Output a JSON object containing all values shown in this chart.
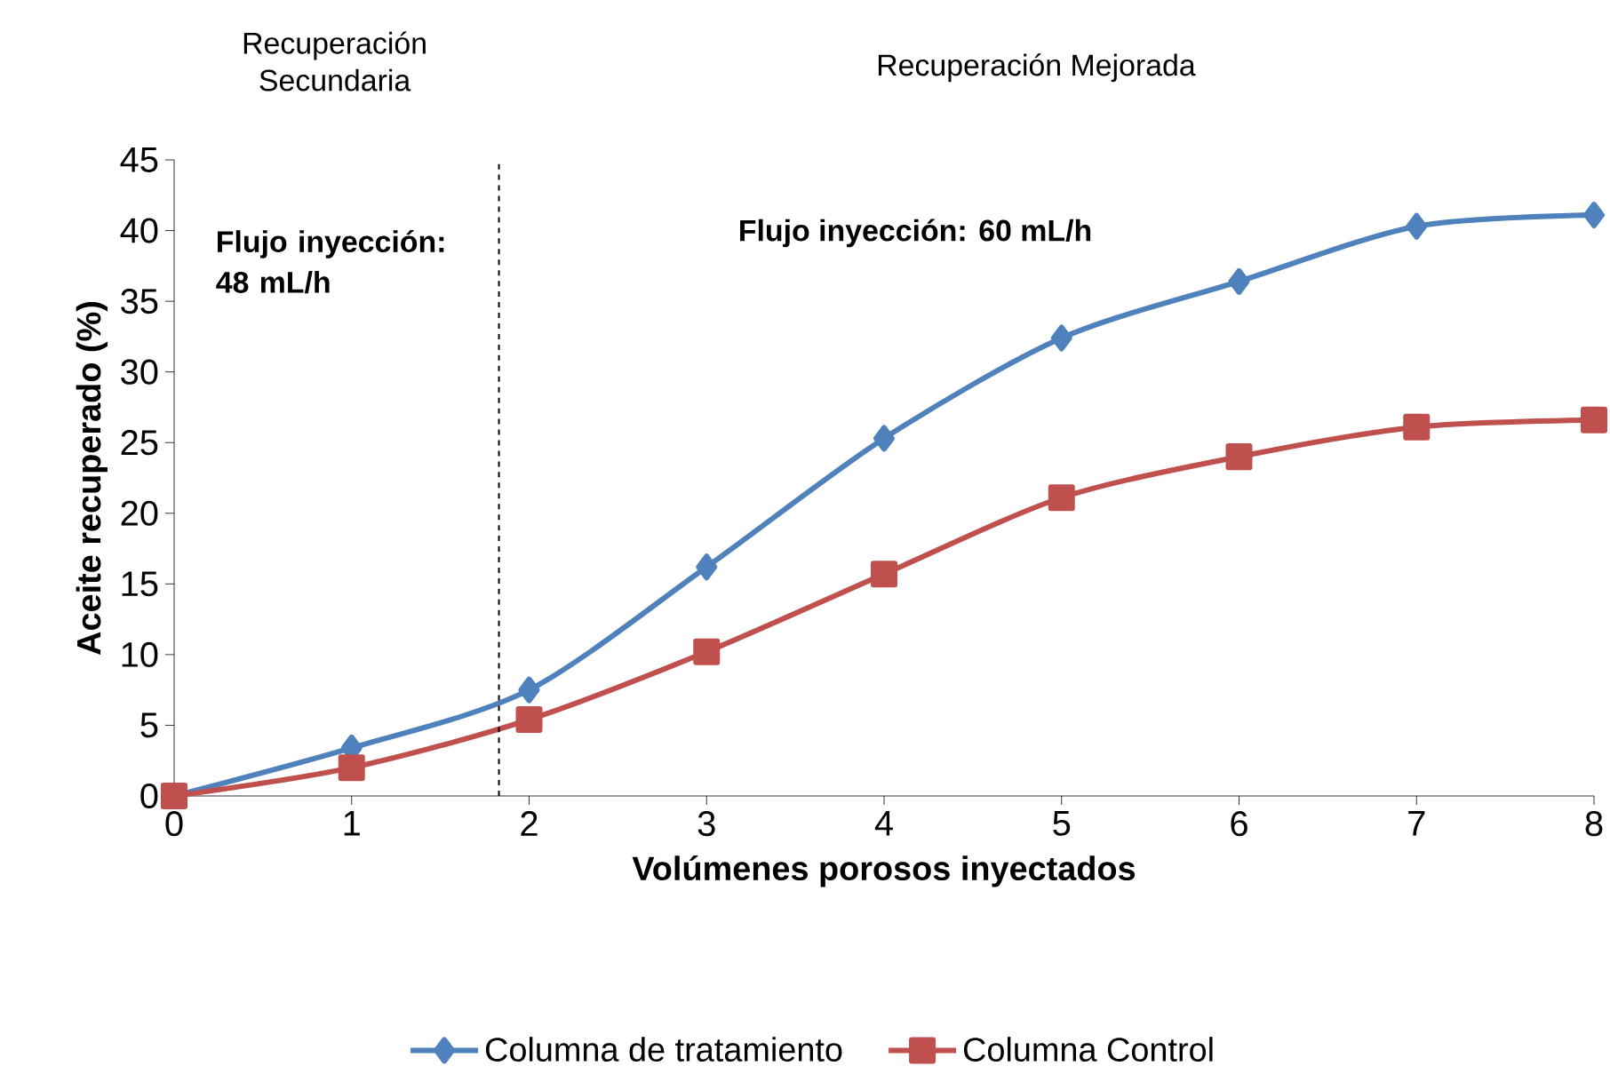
{
  "chart_data": {
    "type": "line",
    "xlabel": "Volúmenes porosos inyectados",
    "ylabel": "Aceite recuperado (%)",
    "x": [
      0,
      1,
      2,
      3,
      4,
      5,
      6,
      7,
      8
    ],
    "series": [
      {
        "name": "Columna de tratamiento",
        "color": "#4f81bd",
        "marker": "diamond",
        "values": [
          0,
          3.4,
          7.5,
          16.2,
          25.3,
          32.4,
          36.4,
          40.3,
          41.1
        ]
      },
      {
        "name": "Columna Control",
        "color": "#c0504d",
        "marker": "square",
        "values": [
          0,
          2.0,
          5.4,
          10.2,
          15.7,
          21.1,
          24.0,
          26.1,
          26.6
        ]
      }
    ],
    "xlim": [
      0,
      8
    ],
    "ylim": [
      0,
      45
    ],
    "xticks": [
      0,
      1,
      2,
      3,
      4,
      5,
      6,
      7,
      8
    ],
    "yticks": [
      0,
      5,
      10,
      15,
      20,
      25,
      30,
      35,
      40,
      45
    ],
    "ref_lines": [
      {
        "axis": "x",
        "value": 1.83,
        "line_style": "dashed",
        "color": "#000000"
      }
    ],
    "annotations": [
      "Recuperación Secundaria",
      "Recuperación Mejorada",
      "Flujo inyección: 48 mL/h",
      "Flujo inyección: 60 mL/h"
    ],
    "legend": "bottom",
    "grid": false,
    "line_style": "solid"
  }
}
